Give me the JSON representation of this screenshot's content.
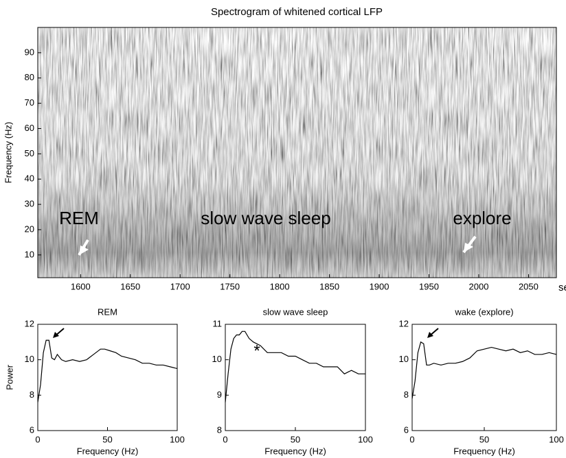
{
  "chart_data": [
    {
      "type": "heatmap",
      "title": "Spectrogram of whitened cortical LFP",
      "ylabel": "Frequency (Hz)",
      "xlabel": "sec",
      "xlim": [
        1557,
        2078
      ],
      "xticks": [
        1600,
        1650,
        1700,
        1750,
        1800,
        1850,
        1900,
        1950,
        2000,
        2050
      ],
      "ylim": [
        1,
        100
      ],
      "yticks": [
        10,
        20,
        30,
        40,
        50,
        60,
        70,
        80,
        90
      ],
      "annotations": [
        "REM",
        "slow wave sleep",
        "explore"
      ]
    },
    {
      "type": "line",
      "title": "REM",
      "ylabel": "Power",
      "xlabel": "Frequency (Hz)",
      "color": "#000000",
      "xlim": [
        0,
        100
      ],
      "xticks": [
        0,
        50,
        100
      ],
      "ylim": [
        6,
        12
      ],
      "yticks": [
        6,
        8,
        10,
        12
      ],
      "x": [
        0,
        2,
        4,
        6,
        8,
        10,
        12,
        14,
        17,
        20,
        25,
        30,
        35,
        40,
        45,
        48,
        52,
        56,
        60,
        65,
        70,
        75,
        80,
        85,
        90,
        95,
        100
      ],
      "values": [
        7.6,
        8.6,
        10.4,
        11.1,
        11.1,
        10.1,
        10.0,
        10.3,
        10.0,
        9.9,
        10.0,
        9.9,
        10.0,
        10.3,
        10.6,
        10.6,
        10.5,
        10.4,
        10.2,
        10.1,
        10.0,
        9.8,
        9.8,
        9.7,
        9.7,
        9.6,
        9.5
      ]
    },
    {
      "type": "line",
      "title": "slow wave sleep",
      "xlabel": "Frequency (Hz)",
      "color": "#000000",
      "annotations": [
        "*"
      ],
      "xlim": [
        0,
        100
      ],
      "xticks": [
        0,
        50,
        100
      ],
      "ylim": [
        8,
        11
      ],
      "yticks": [
        8,
        9,
        10,
        11
      ],
      "x": [
        0,
        2,
        4,
        6,
        8,
        10,
        12,
        14,
        17,
        20,
        25,
        30,
        35,
        40,
        45,
        50,
        55,
        60,
        65,
        70,
        75,
        80,
        85,
        90,
        95,
        100
      ],
      "values": [
        8.8,
        9.6,
        10.3,
        10.6,
        10.7,
        10.7,
        10.8,
        10.8,
        10.6,
        10.5,
        10.4,
        10.2,
        10.2,
        10.2,
        10.1,
        10.1,
        10.0,
        9.9,
        9.9,
        9.8,
        9.8,
        9.8,
        9.6,
        9.7,
        9.6,
        9.6
      ]
    },
    {
      "type": "line",
      "title": "wake (explore)",
      "xlabel": "Frequency (Hz)",
      "color": "#000000",
      "xlim": [
        0,
        100
      ],
      "xticks": [
        0,
        50,
        100
      ],
      "ylim": [
        6,
        12
      ],
      "yticks": [
        6,
        8,
        10,
        12
      ],
      "x": [
        0,
        2,
        4,
        6,
        8,
        10,
        12,
        15,
        20,
        25,
        30,
        35,
        40,
        45,
        50,
        55,
        60,
        65,
        70,
        75,
        80,
        85,
        90,
        95,
        100
      ],
      "values": [
        7.8,
        8.8,
        10.4,
        11.0,
        10.9,
        9.7,
        9.7,
        9.8,
        9.7,
        9.8,
        9.8,
        9.9,
        10.1,
        10.5,
        10.6,
        10.7,
        10.6,
        10.5,
        10.6,
        10.4,
        10.5,
        10.3,
        10.3,
        10.4,
        10.3
      ]
    }
  ]
}
